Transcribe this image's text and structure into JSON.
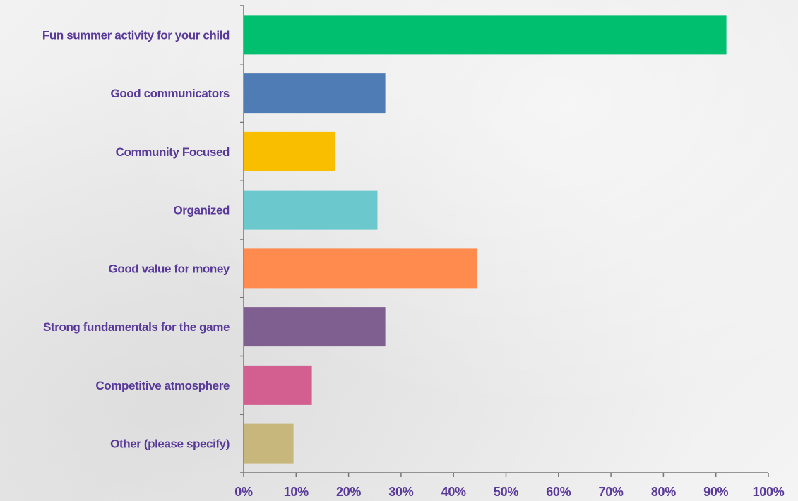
{
  "chart_data": {
    "type": "bar",
    "orientation": "horizontal",
    "categories": [
      "Fun summer activity for your child",
      "Good communicators",
      "Community Focused",
      "Organized",
      "Good value for money",
      "Strong fundamentals for the game",
      "Competitive atmosphere",
      "Other (please specify)"
    ],
    "values": [
      92.0,
      27.0,
      17.5,
      25.5,
      44.5,
      27.0,
      13.0,
      9.5
    ],
    "colors": [
      "#00bf6f",
      "#507cb6",
      "#f9be00",
      "#6bc8cd",
      "#ff8b4f",
      "#7f5f90",
      "#d25f90",
      "#c8b77c"
    ],
    "xlim": [
      0,
      100
    ],
    "x_ticks": [
      "0%",
      "10%",
      "20%",
      "30%",
      "40%",
      "50%",
      "60%",
      "70%",
      "80%",
      "90%",
      "100%"
    ],
    "title": "",
    "xlabel": "",
    "ylabel": "",
    "grid": false,
    "legend": "none"
  },
  "style": {
    "label_color": "#5a3a99",
    "axis_color": "#777777"
  }
}
